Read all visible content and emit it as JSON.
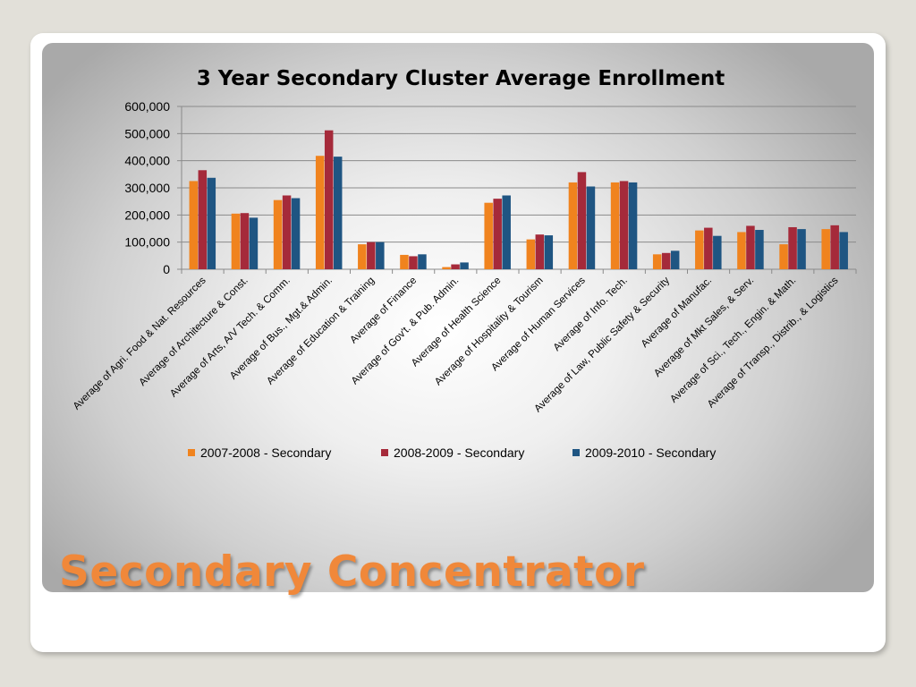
{
  "slide": {
    "title": "Secondary Concentrator",
    "title_color": "#f0883a"
  },
  "chart_data": {
    "type": "bar",
    "title": "3 Year Secondary Cluster Average Enrollment",
    "xlabel": "",
    "ylabel": "",
    "ylim": [
      0,
      600000
    ],
    "yticks": [
      0,
      100000,
      200000,
      300000,
      400000,
      500000,
      600000
    ],
    "ytick_labels": [
      "0",
      "100,000",
      "200,000",
      "300,000",
      "400,000",
      "500,000",
      "600,000"
    ],
    "grid": true,
    "legend_position": "bottom",
    "categories": [
      "Average of Agri. Food & Nat. Resources",
      "Average of Architecture & Const.",
      "Average of Arts, A/V Tech. & Comm.",
      "Average of Bus., Mgt.& Admin.",
      "Average of Education & Training",
      "Average of Finance",
      "Average of Gov't. & Pub. Admin.",
      "Average of Health Science",
      "Average of Hospitality & Tourism",
      "Average of Human Services",
      "Average of Info. Tech.",
      "Average of Law, Public Safety & Security",
      "Average of Manufac.",
      "Average of Mkt Sales, & Serv.",
      "Average of Sci., Tech., Engin. & Math.",
      "Average of Transp., Distrib., & Logistics"
    ],
    "series": [
      {
        "name": "2007-2008 - Secondary",
        "color": "#f0831e",
        "values": [
          325000,
          205000,
          255000,
          418000,
          92000,
          53000,
          8000,
          245000,
          110000,
          320000,
          320000,
          55000,
          143000,
          137000,
          92000,
          148000
        ]
      },
      {
        "name": "2008-2009 - Secondary",
        "color": "#a52a3a",
        "values": [
          365000,
          207000,
          272000,
          512000,
          100000,
          48000,
          18000,
          260000,
          128000,
          358000,
          325000,
          60000,
          153000,
          160000,
          155000,
          162000
        ]
      },
      {
        "name": "2009-2010 - Secondary",
        "color": "#1f5582",
        "values": [
          337000,
          190000,
          262000,
          415000,
          100000,
          55000,
          25000,
          272000,
          125000,
          305000,
          320000,
          68000,
          123000,
          145000,
          148000,
          137000
        ]
      }
    ]
  }
}
